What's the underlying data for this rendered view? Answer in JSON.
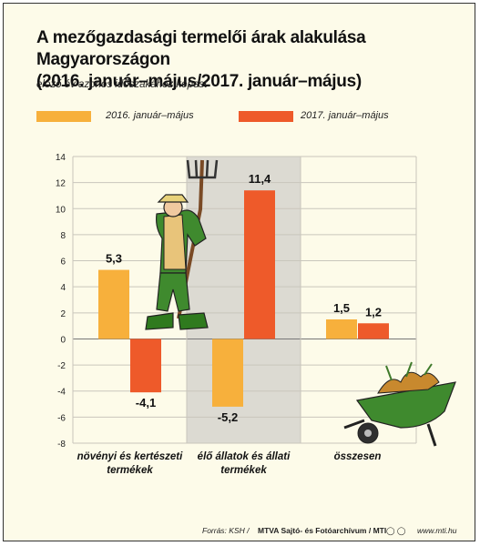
{
  "chart_data": {
    "type": "bar",
    "title": "A mezőgazdasági termelői árak alakulása Magyarországon (2016. január–május/2017. január–május)",
    "title_lines": [
      "A mezőgazdasági termelői árak alakulása Magyarországon",
      "(2016. január–május/2017. január–május)"
    ],
    "subtitle": "előző év azonos időszakához képest",
    "categories": [
      "növényi és kertészeti termékek",
      "élő állatok és állati termékek",
      "összesen"
    ],
    "category_lines": [
      [
        "növényi és kertészeti",
        "termékek"
      ],
      [
        "élő állatok és állati",
        "termékek"
      ],
      [
        "összesen"
      ]
    ],
    "series": [
      {
        "name": "2016. január–május",
        "values": [
          5.3,
          -5.2,
          1.5
        ],
        "labels": [
          "5,3",
          "-5,2",
          "1,5"
        ],
        "color": "#f7b03c"
      },
      {
        "name": "2017. január–május",
        "values": [
          -4.1,
          11.4,
          1.2
        ],
        "labels": [
          "-4,1",
          "11,4",
          "1,2"
        ],
        "color": "#ee5a2a"
      }
    ],
    "ylim": [
      -8,
      14
    ],
    "yticks": [
      14,
      12,
      10,
      8,
      6,
      4,
      2,
      0,
      -2,
      -4,
      -6,
      -8
    ],
    "ytick_labels": [
      "14",
      "12",
      "10",
      "8",
      "6",
      "4",
      "2",
      "0",
      "-2",
      "-4",
      "-6",
      "-8"
    ],
    "xlabel": "",
    "ylabel": "",
    "grid": true,
    "legend_position": "top"
  },
  "colors": {
    "background": "#fdfbe9",
    "shaded_band": "#dcdad2",
    "grid": "#c9c6bc"
  },
  "illustrations": [
    "farmer-with-pitchfork-icon",
    "wheelbarrow-icon"
  ],
  "footer": {
    "source_prefix": "Forrás: KSH / ",
    "source_org": "MTVA Sajtó- és Fotóarchívum / MTI",
    "website": "www.mti.hu"
  }
}
